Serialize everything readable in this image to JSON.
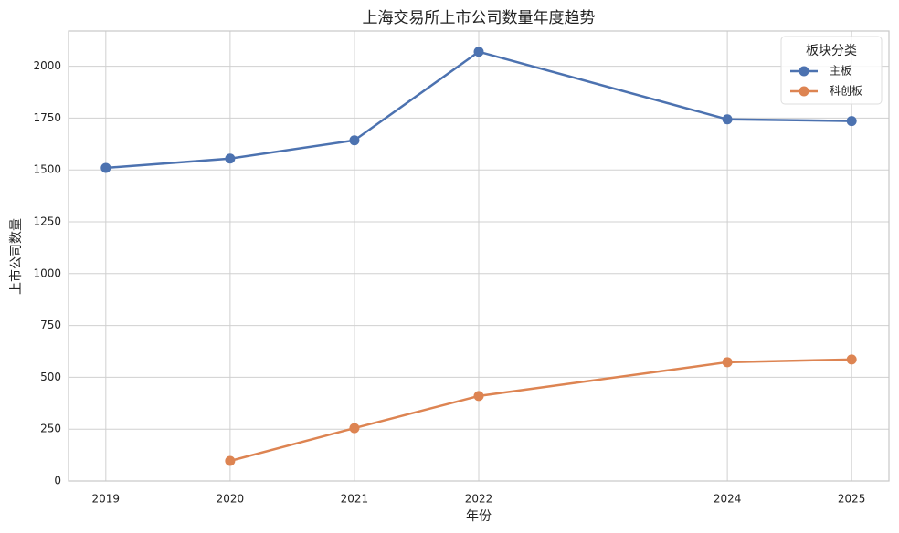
{
  "chart_data": {
    "type": "line",
    "title": "上海交易所上市公司数量年度趋势",
    "x_label": "年份",
    "y_label": "上市公司数量",
    "x": [
      2019,
      2020,
      2021,
      2022,
      2024,
      2025
    ],
    "series": [
      {
        "name": "主板",
        "color": "#4c72b0",
        "values": [
          1510,
          1555,
          1643,
          2070,
          1744,
          1736
        ]
      },
      {
        "name": "科创板",
        "color": "#dd8452",
        "values": [
          null,
          97,
          255,
          410,
          573,
          586
        ]
      }
    ],
    "xlim": [
      2018.7,
      2025.3
    ],
    "xticks": [
      2019,
      2020,
      2021,
      2022,
      2024,
      2025
    ],
    "ylim": [
      0,
      2170
    ],
    "yticks": [
      0,
      250,
      500,
      750,
      1000,
      1250,
      1500,
      1750,
      2000
    ],
    "grid": true,
    "legend_title": "板块分类",
    "legend_position": "upper-right"
  }
}
